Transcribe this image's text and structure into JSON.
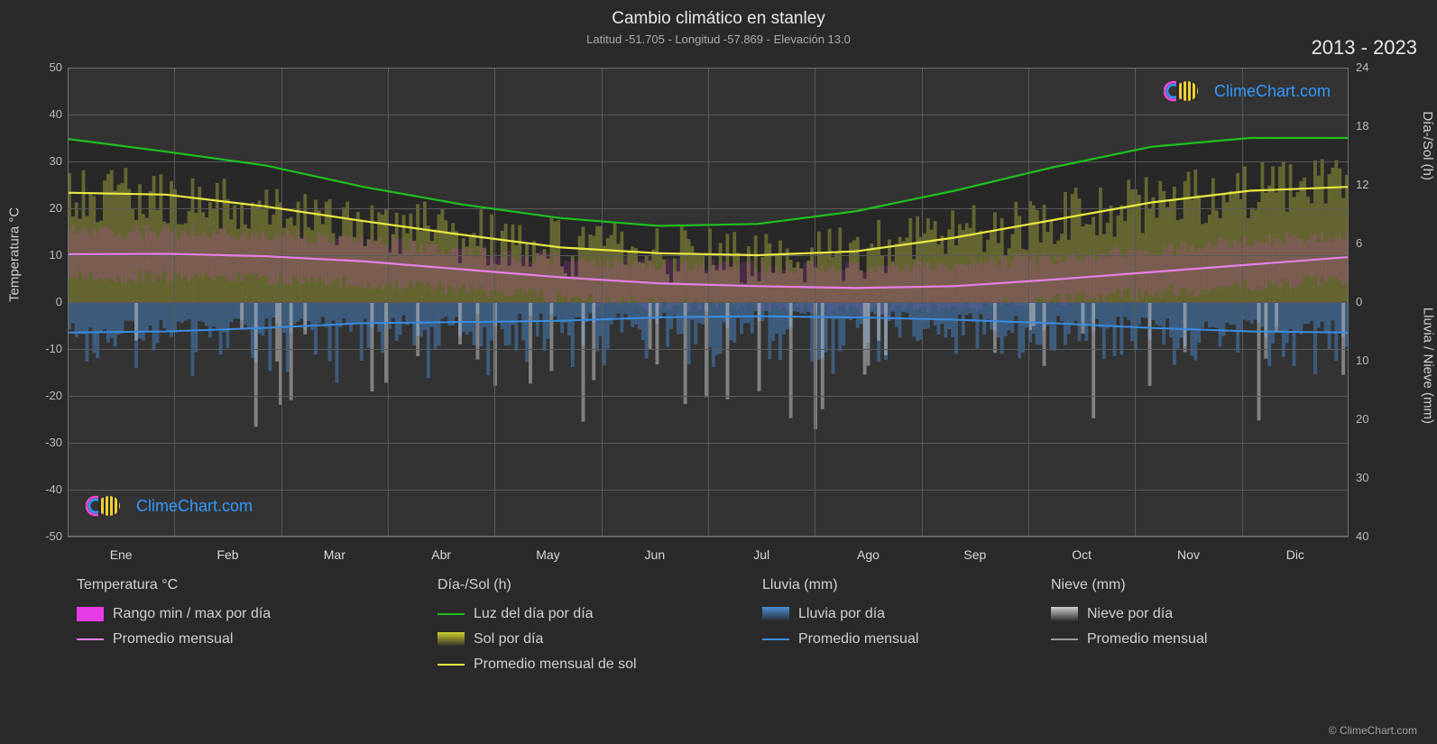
{
  "title": "Cambio climático en stanley",
  "subtitle": "Latitud -51.705 - Longitud -57.869 - Elevación 13.0",
  "period": "2013 - 2023",
  "copyright": "© ClimeChart.com",
  "logo_text": "ClimeChart.com",
  "background_color": "#2a2a2a",
  "plot_background_color": "#333333",
  "grid_color": "#5a5a5a",
  "axis_color": "#707070",
  "text_color": "#c0c0c0",
  "title_color": "#e8e8e8",
  "y_left": {
    "label": "Temperatura °C",
    "min": -50,
    "max": 50,
    "ticks": [
      -50,
      -40,
      -30,
      -20,
      -10,
      0,
      10,
      20,
      30,
      40,
      50
    ],
    "label_fontsize": 15,
    "tick_fontsize": 13
  },
  "y_right_top": {
    "label": "Día-/Sol (h)",
    "min": 0,
    "max": 24,
    "ticks": [
      0,
      6,
      12,
      18,
      24
    ]
  },
  "y_right_bottom": {
    "label": "Lluvia / Nieve (mm)",
    "min": 0,
    "max": 40,
    "ticks": [
      0,
      10,
      20,
      30,
      40
    ]
  },
  "months": [
    "Ene",
    "Feb",
    "Mar",
    "Abr",
    "May",
    "Jun",
    "Jul",
    "Ago",
    "Sep",
    "Oct",
    "Nov",
    "Dic"
  ],
  "series": {
    "daylight": {
      "type": "line",
      "color": "#1fbf1f",
      "values_h": [
        16.7,
        15.4,
        14.0,
        11.8,
        10.0,
        8.6,
        7.8,
        8.0,
        9.3,
        11.4,
        13.8,
        15.9,
        16.8,
        16.8
      ]
    },
    "sun_avg": {
      "type": "line",
      "color": "#e9e943",
      "values_h": [
        11.2,
        11.0,
        9.8,
        8.3,
        6.9,
        5.6,
        5.0,
        4.8,
        5.2,
        6.6,
        8.4,
        10.2,
        11.4,
        11.8
      ]
    },
    "temp_avg": {
      "type": "line",
      "color": "#e67fe6",
      "values_c": [
        10.2,
        10.3,
        9.8,
        8.7,
        7.0,
        5.3,
        4.0,
        3.4,
        3.0,
        3.4,
        4.8,
        6.4,
        8.0,
        9.6
      ]
    },
    "rain_avg": {
      "type": "line",
      "color": "#3a8de0",
      "values_mm": [
        5.2,
        5.0,
        4.4,
        3.6,
        3.4,
        3.2,
        2.6,
        2.4,
        2.6,
        3.0,
        3.6,
        4.4,
        5.0,
        5.2
      ]
    },
    "temp_range_band": {
      "type": "band",
      "color": "#e63ce6",
      "opacity": 0.18,
      "min_c": [
        5.5,
        5.5,
        5.0,
        4.0,
        2.5,
        1.0,
        -0.5,
        -1.0,
        -1.5,
        -1.0,
        0.5,
        2.0,
        3.5,
        5.0
      ],
      "max_c": [
        15.0,
        15.0,
        14.5,
        13.0,
        11.0,
        9.0,
        8.0,
        7.5,
        7.5,
        8.0,
        9.5,
        11.0,
        13.0,
        14.5
      ]
    },
    "sun_bars": {
      "type": "bars",
      "color": "#cfcf2e",
      "opacity": 0.32
    },
    "rain_bars": {
      "type": "bars",
      "color": "#4a8fd8",
      "opacity": 0.45
    },
    "snow_bars": {
      "type": "bars",
      "color": "#cfcfcf",
      "opacity": 0.5
    }
  },
  "legend": {
    "temp": {
      "header": "Temperatura °C",
      "range": {
        "label": "Rango min / max por día",
        "color": "#e63ce6",
        "kind": "swatch"
      },
      "avg": {
        "label": "Promedio mensual",
        "color": "#e67fe6",
        "kind": "line"
      }
    },
    "daysol": {
      "header": "Día-/Sol (h)",
      "daylight": {
        "label": "Luz del día por día",
        "color": "#1fbf1f",
        "kind": "line"
      },
      "sun": {
        "label": "Sol por día",
        "color": "#cfcf2e",
        "kind": "swatch"
      },
      "sun_avg": {
        "label": "Promedio mensual de sol",
        "color": "#e9e943",
        "kind": "line"
      }
    },
    "rain": {
      "header": "Lluvia (mm)",
      "daily": {
        "label": "Lluvia por día",
        "color": "#4a8fd8",
        "kind": "swatch"
      },
      "avg": {
        "label": "Promedio mensual",
        "color": "#3a8de0",
        "kind": "line"
      }
    },
    "snow": {
      "header": "Nieve (mm)",
      "daily": {
        "label": "Nieve por día",
        "color": "#cfcfcf",
        "kind": "swatch"
      },
      "avg": {
        "label": "Promedio mensual",
        "color": "#9a9a9a",
        "kind": "line"
      }
    }
  },
  "logo_colors": {
    "ring1": "#ff4ae0",
    "ring2": "#3399ff",
    "sun": "#f0d030",
    "text": "#3399ff"
  }
}
